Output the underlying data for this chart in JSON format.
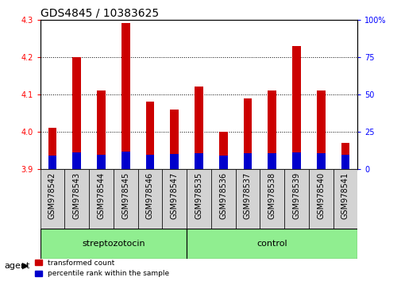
{
  "title": "GDS4845 / 10383625",
  "samples": [
    "GSM978542",
    "GSM978543",
    "GSM978544",
    "GSM978545",
    "GSM978546",
    "GSM978547",
    "GSM978535",
    "GSM978536",
    "GSM978537",
    "GSM978538",
    "GSM978539",
    "GSM978540",
    "GSM978541"
  ],
  "red_values": [
    4.01,
    4.2,
    4.11,
    4.29,
    4.08,
    4.06,
    4.12,
    4.0,
    4.09,
    4.11,
    4.23,
    4.11,
    3.97
  ],
  "blue_values": [
    3.935,
    3.945,
    3.937,
    3.947,
    3.937,
    3.94,
    3.942,
    3.935,
    3.943,
    3.943,
    3.944,
    3.942,
    3.937
  ],
  "ymin": 3.9,
  "ymax": 4.3,
  "y2min": 0,
  "y2max": 100,
  "yticks": [
    3.9,
    4.0,
    4.1,
    4.2,
    4.3
  ],
  "y2ticks": [
    0,
    25,
    50,
    75,
    100
  ],
  "y2ticklabels": [
    "0",
    "25",
    "50",
    "75",
    "100%"
  ],
  "groups": [
    {
      "label": "streptozotocin",
      "start": 0,
      "end": 6
    },
    {
      "label": "control",
      "start": 6,
      "end": 13
    }
  ],
  "group_color": "#90EE90",
  "agent_label": "agent",
  "bar_color_red": "#CC0000",
  "bar_color_blue": "#0000CC",
  "bar_width": 0.35,
  "background_color": "#ffffff",
  "tick_area_color": "#d3d3d3",
  "grid_color": "#000000",
  "title_fontsize": 10,
  "tick_fontsize": 7,
  "label_fontsize": 8
}
